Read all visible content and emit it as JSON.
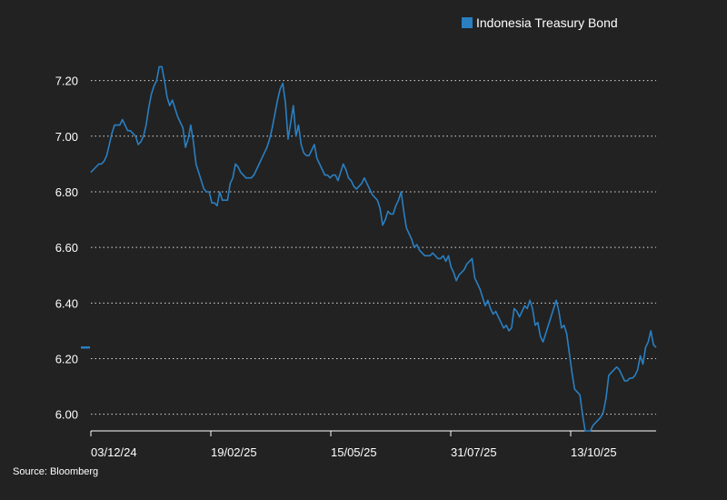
{
  "chart_data": {
    "type": "line",
    "title": "",
    "xlabel": "",
    "ylabel": "",
    "ylim": [
      5.94,
      7.31
    ],
    "y_ticks": [
      "6.00",
      "6.20",
      "6.40",
      "6.60",
      "6.80",
      "7.00",
      "7.20"
    ],
    "x_ticks": [
      "03/12/24",
      "19/02/25",
      "15/05/25",
      "31/07/25",
      "13/10/25"
    ],
    "grid": "horizontal dotted",
    "legend_position": "top-right",
    "series": [
      {
        "name": "Indonesia Treasury Bond",
        "color": "#2a7fc1",
        "values": [
          6.87,
          6.88,
          6.89,
          6.9,
          6.9,
          6.91,
          6.93,
          6.97,
          7.01,
          7.04,
          7.04,
          7.04,
          7.06,
          7.04,
          7.02,
          7.02,
          7.01,
          7.0,
          6.97,
          6.98,
          7.0,
          7.04,
          7.1,
          7.15,
          7.18,
          7.2,
          7.25,
          7.25,
          7.2,
          7.14,
          7.11,
          7.13,
          7.1,
          7.07,
          7.05,
          7.03,
          6.96,
          6.99,
          7.04,
          6.98,
          6.9,
          6.87,
          6.84,
          6.81,
          6.8,
          6.8,
          6.76,
          6.76,
          6.75,
          6.8,
          6.77,
          6.77,
          6.77,
          6.83,
          6.85,
          6.9,
          6.89,
          6.87,
          6.86,
          6.85,
          6.85,
          6.85,
          6.86,
          6.88,
          6.9,
          6.92,
          6.94,
          6.96,
          6.99,
          7.03,
          7.08,
          7.13,
          7.17,
          7.19,
          7.12,
          6.99,
          7.05,
          7.11,
          7.0,
          7.04,
          6.97,
          6.94,
          6.93,
          6.93,
          6.95,
          6.97,
          6.92,
          6.9,
          6.88,
          6.86,
          6.86,
          6.85,
          6.86,
          6.86,
          6.84,
          6.87,
          6.9,
          6.88,
          6.85,
          6.84,
          6.82,
          6.81,
          6.82,
          6.83,
          6.85,
          6.83,
          6.81,
          6.79,
          6.78,
          6.77,
          6.74,
          6.68,
          6.7,
          6.73,
          6.72,
          6.72,
          6.75,
          6.77,
          6.8,
          6.73,
          6.67,
          6.65,
          6.63,
          6.6,
          6.61,
          6.59,
          6.58,
          6.57,
          6.57,
          6.57,
          6.58,
          6.57,
          6.56,
          6.56,
          6.57,
          6.55,
          6.57,
          6.53,
          6.51,
          6.48,
          6.5,
          6.51,
          6.52,
          6.54,
          6.55,
          6.56,
          6.49,
          6.47,
          6.45,
          6.42,
          6.39,
          6.41,
          6.38,
          6.36,
          6.37,
          6.35,
          6.33,
          6.31,
          6.32,
          6.3,
          6.31,
          6.38,
          6.37,
          6.35,
          6.37,
          6.39,
          6.38,
          6.41,
          6.38,
          6.32,
          6.33,
          6.28,
          6.26,
          6.29,
          6.32,
          6.35,
          6.38,
          6.41,
          6.37,
          6.31,
          6.32,
          6.29,
          6.22,
          6.15,
          6.09,
          6.08,
          6.07,
          6.0,
          5.94,
          5.94,
          5.94,
          5.96,
          5.97,
          5.98,
          5.99,
          6.01,
          6.06,
          6.14,
          6.15,
          6.16,
          6.17,
          6.16,
          6.14,
          6.12,
          6.12,
          6.13,
          6.13,
          6.14,
          6.16,
          6.21,
          6.18,
          6.24,
          6.26,
          6.3,
          6.25,
          6.24
        ]
      }
    ],
    "marker_left_value": 6.24,
    "source": "Source: Bloomberg"
  }
}
